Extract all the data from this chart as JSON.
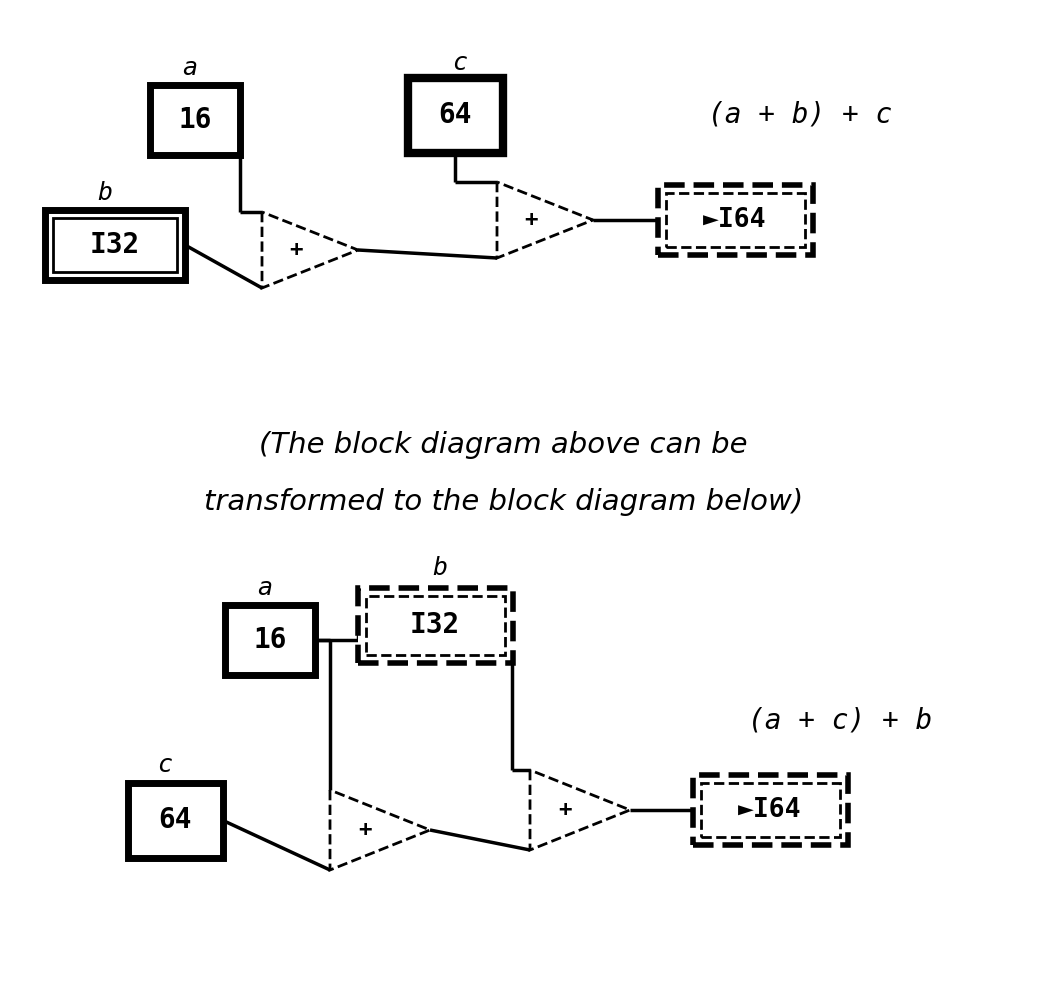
{
  "bg_color": "#ffffff",
  "fig_width": 10.49,
  "fig_height": 9.94,
  "dpi": 100,
  "middle_text_line1": "(The block diagram above can be",
  "middle_text_line2": "transformed to the block diagram below)",
  "middle_text_fontsize": 21,
  "diagram1": {
    "label_a": "a",
    "label_b": "b",
    "label_c": "c",
    "box16_label": "16",
    "box_i32_label": "I32",
    "box64_label": "64",
    "box_i64_label": "►I64",
    "result_label": "(a + b) + c"
  },
  "diagram2": {
    "label_a": "a",
    "label_b": "b",
    "label_c": "c",
    "box16_label": "16",
    "box_i32_label": "I32",
    "box64_label": "64",
    "box_i64_label": "►I64",
    "result_label": "(a + c) + b"
  }
}
